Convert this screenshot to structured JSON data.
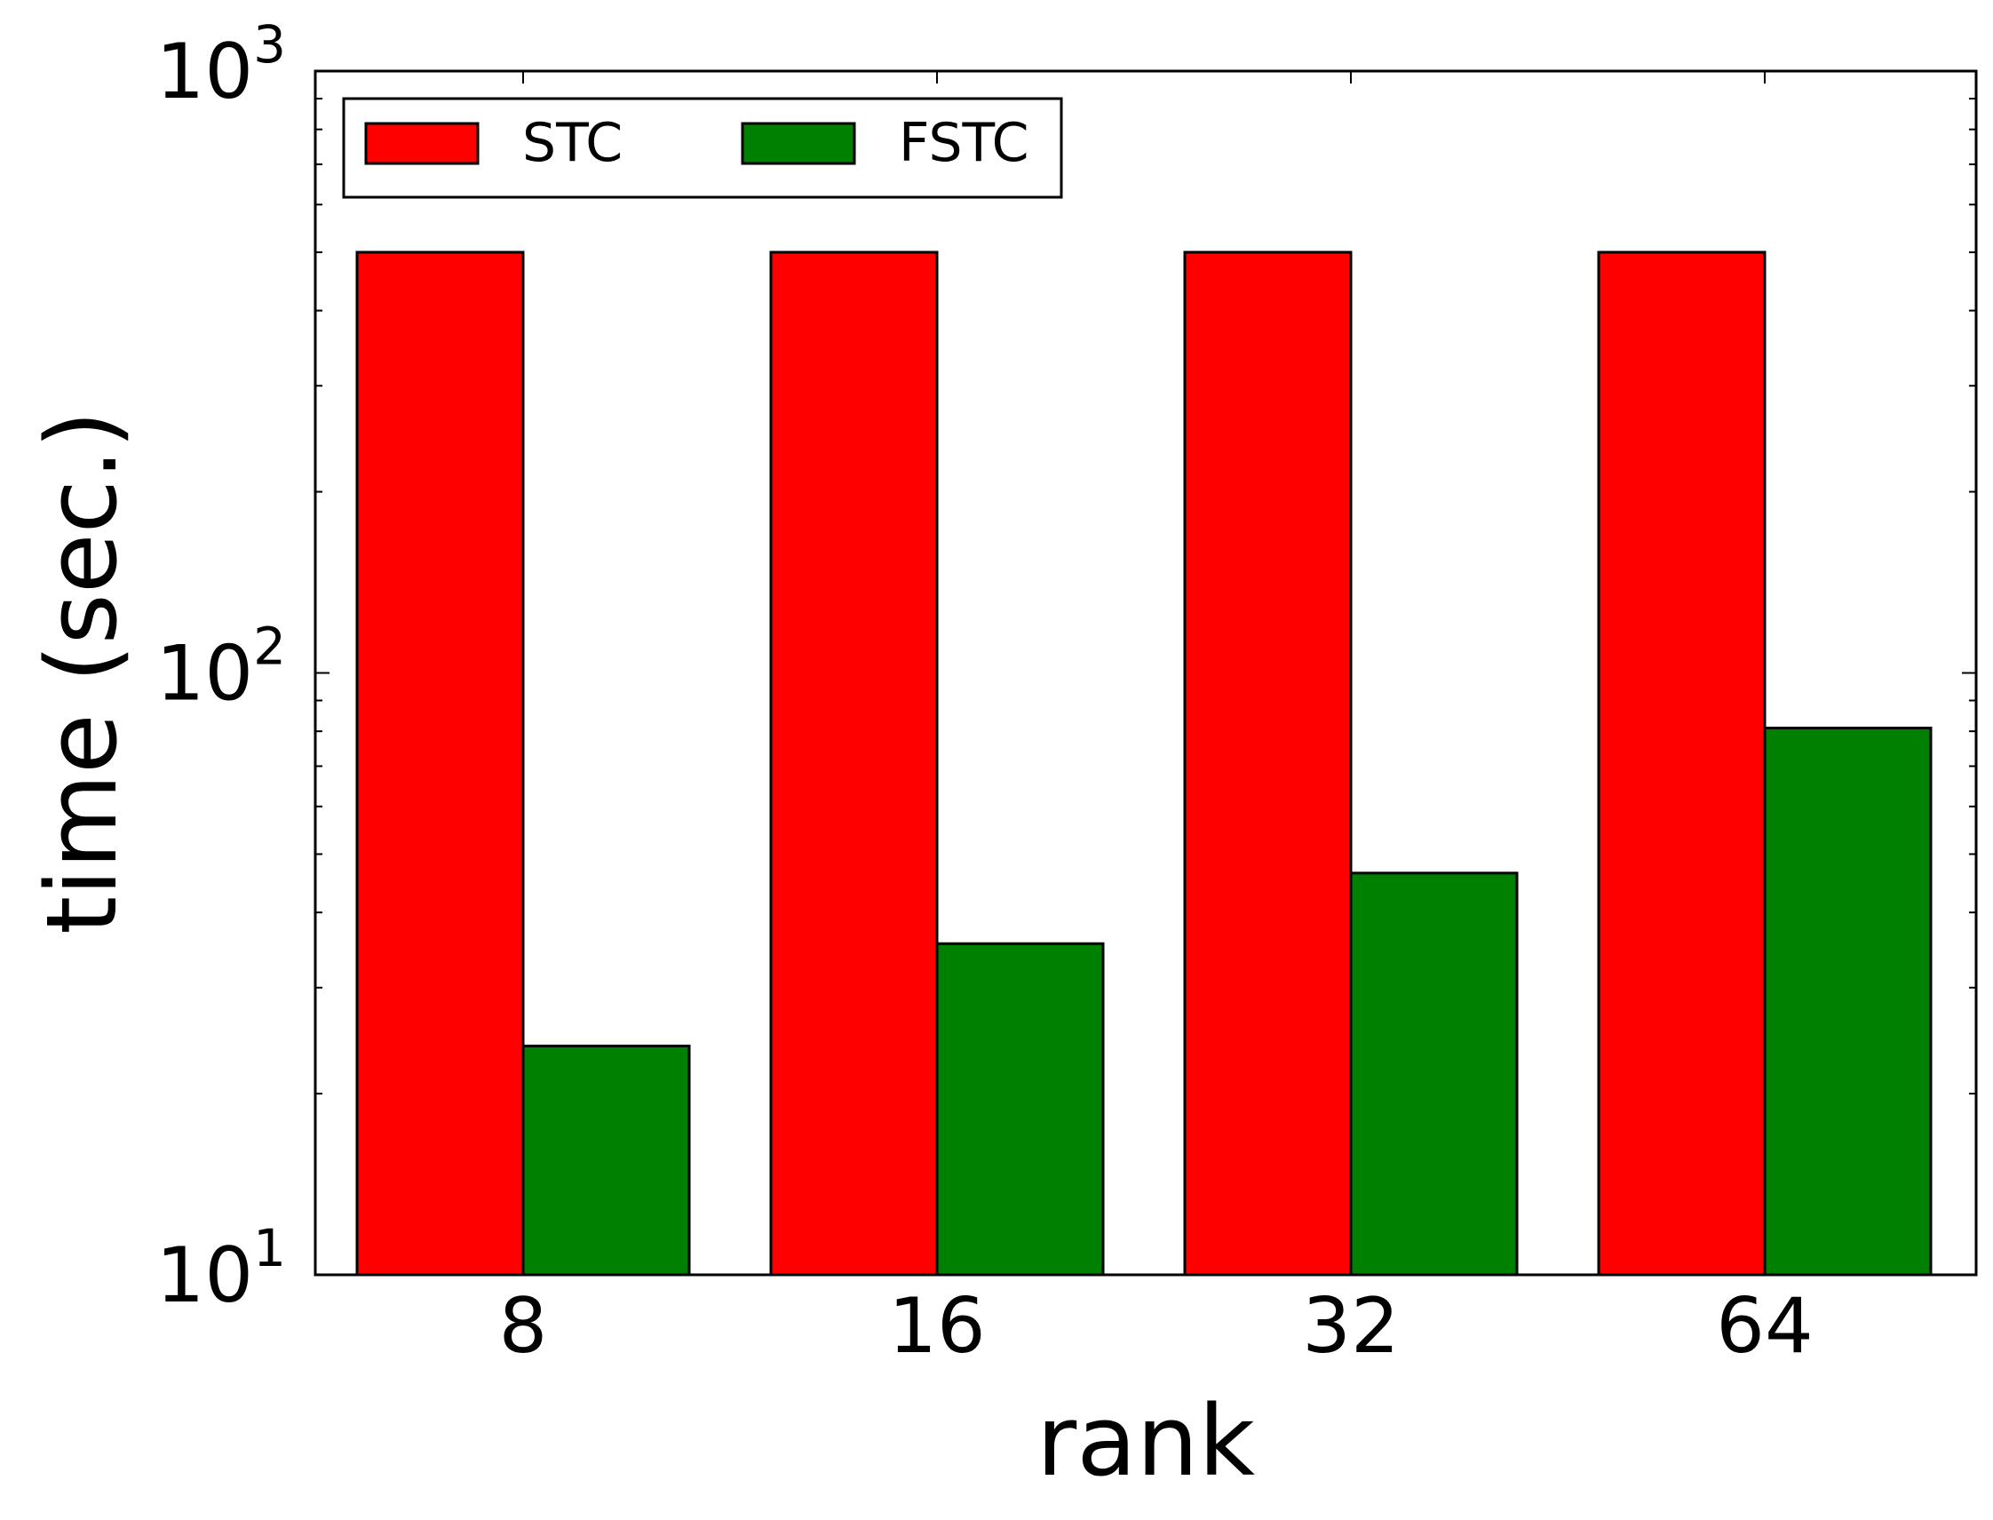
{
  "chart_data": {
    "type": "bar",
    "xlabel": "rank",
    "ylabel": "time (sec.)",
    "yscale": "log",
    "ylim": [
      10,
      1000
    ],
    "yticks": [
      {
        "value": 10,
        "base": "10",
        "exp": "1"
      },
      {
        "value": 100,
        "base": "10",
        "exp": "2"
      },
      {
        "value": 1000,
        "base": "10",
        "exp": "3"
      }
    ],
    "categories": [
      "8",
      "16",
      "32",
      "64"
    ],
    "series": [
      {
        "name": "STC",
        "color": "#ff0000",
        "values": [
          500,
          500,
          500,
          500
        ]
      },
      {
        "name": "FSTC",
        "color": "#008000",
        "values": [
          24,
          35.5,
          46.5,
          81
        ]
      }
    ],
    "legend": "top-left",
    "legend_columns": 2,
    "grid": false
  }
}
